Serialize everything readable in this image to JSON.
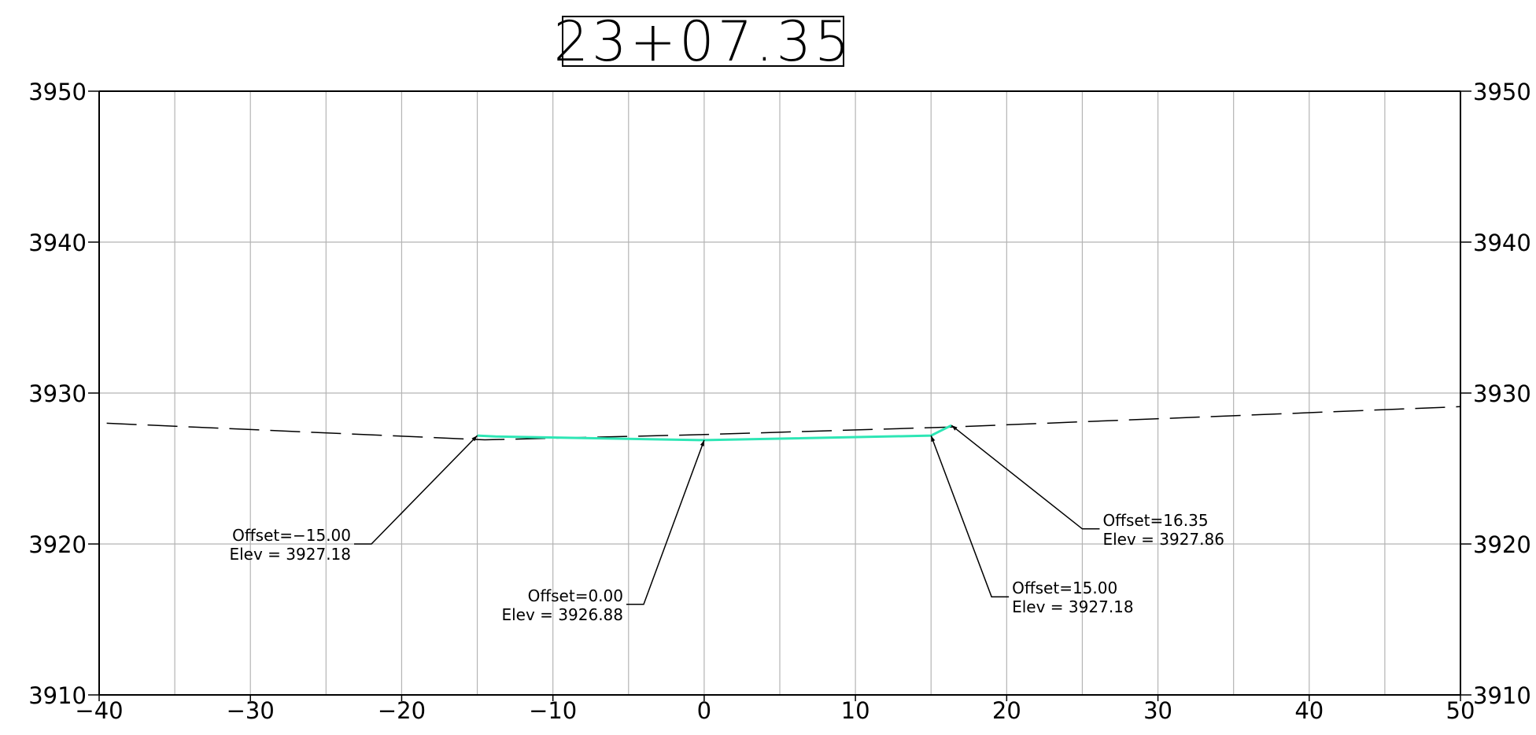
{
  "station_label": "23+07.35",
  "chart_data": {
    "type": "line",
    "title": "23+07.35",
    "xlabel": "",
    "ylabel": "",
    "xlim": [
      -40,
      50
    ],
    "ylim": [
      3910,
      3950
    ],
    "x_ticks": [
      {
        "value": -40,
        "label": "−40"
      },
      {
        "value": -30,
        "label": "−30"
      },
      {
        "value": -20,
        "label": "−20"
      },
      {
        "value": -10,
        "label": "−10"
      },
      {
        "value": 0,
        "label": "0"
      },
      {
        "value": 10,
        "label": "10"
      },
      {
        "value": 20,
        "label": "20"
      },
      {
        "value": 30,
        "label": "30"
      },
      {
        "value": 40,
        "label": "40"
      },
      {
        "value": 50,
        "label": "50"
      }
    ],
    "y_ticks": [
      {
        "value": 3910,
        "label": "3910"
      },
      {
        "value": 3920,
        "label": "3920"
      },
      {
        "value": 3930,
        "label": "3930"
      },
      {
        "value": 3940,
        "label": "3940"
      },
      {
        "value": 3950,
        "label": "3950"
      }
    ],
    "y_ticks_both_sides": true,
    "grid": {
      "x_step": 5,
      "y_step": 10,
      "color": "#b4b4b4"
    },
    "series": [
      {
        "style": "dashed",
        "color": "#000000",
        "x": [
          -39.5,
          -14.5,
          0,
          16.35,
          50
        ],
        "y": [
          3928.0,
          3926.9,
          3927.25,
          3927.75,
          3929.1
        ]
      },
      {
        "style": "solid",
        "color": "#2ee6b5",
        "x": [
          -15.0,
          -13.8,
          0.0,
          15.0,
          16.35
        ],
        "y": [
          3927.18,
          3927.12,
          3926.88,
          3927.18,
          3927.86
        ]
      }
    ],
    "annotations": [
      {
        "offset_text": "Offset=−15.00",
        "elev_text": "Elev  =  3927.18",
        "point": [
          -15.0,
          3927.18
        ],
        "label_anchor": [
          -22.0,
          3920.0
        ],
        "side": "left"
      },
      {
        "offset_text": "Offset=0.00",
        "elev_text": "Elev  =  3926.88",
        "point": [
          0.0,
          3926.88
        ],
        "label_anchor": [
          -4.0,
          3916.0
        ],
        "side": "left"
      },
      {
        "offset_text": "Offset=15.00",
        "elev_text": "Elev  =  3927.18",
        "point": [
          15.0,
          3927.18
        ],
        "label_anchor": [
          19.0,
          3916.5
        ],
        "side": "right"
      },
      {
        "offset_text": "Offset=16.35",
        "elev_text": "Elev  =  3927.86",
        "point": [
          16.35,
          3927.86
        ],
        "label_anchor": [
          25.0,
          3921.0
        ],
        "side": "right"
      }
    ]
  }
}
